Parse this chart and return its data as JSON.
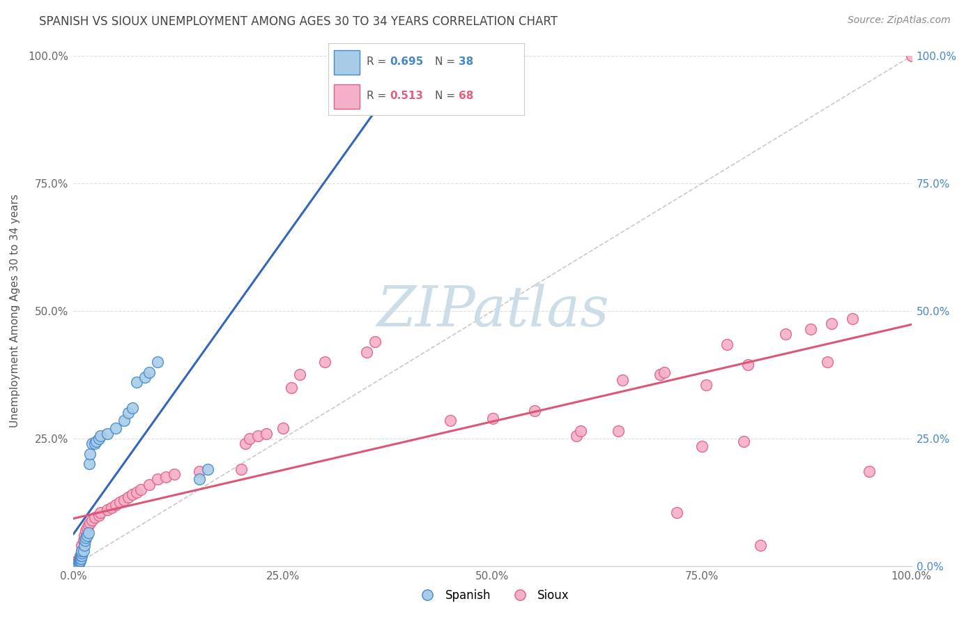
{
  "title": "SPANISH VS SIOUX UNEMPLOYMENT AMONG AGES 30 TO 34 YEARS CORRELATION CHART",
  "source": "Source: ZipAtlas.com",
  "ylabel": "Unemployment Among Ages 30 to 34 years",
  "xlim": [
    0,
    1.0
  ],
  "ylim": [
    0,
    1.0
  ],
  "xticks": [
    0.0,
    0.25,
    0.5,
    0.75,
    1.0
  ],
  "yticks": [
    0.0,
    0.25,
    0.5,
    0.75,
    1.0
  ],
  "xtick_labels": [
    "0.0%",
    "25.0%",
    "50.0%",
    "75.0%",
    "100.0%"
  ],
  "left_ytick_labels": [
    "",
    "25.0%",
    "50.0%",
    "75.0%",
    "100.0%"
  ],
  "right_ytick_labels": [
    "0.0%",
    "25.0%",
    "50.0%",
    "75.0%",
    "100.0%"
  ],
  "spanish_R": "0.695",
  "spanish_N": "38",
  "sioux_R": "0.513",
  "sioux_N": "68",
  "spanish_fill": "#a8cce8",
  "sioux_fill": "#f4b0c8",
  "spanish_edge": "#4488cc",
  "sioux_edge": "#e06080",
  "spanish_line": "#3366bb",
  "sioux_line": "#dd5577",
  "diagonal_color": "#bbbbbb",
  "bg_color": "#ffffff",
  "grid_color": "#dddddd",
  "title_color": "#444444",
  "source_color": "#888888",
  "watermark_color": "#ccdde8",
  "legend_border": "#cccccc",
  "spanish_x": [
    0.003,
    0.004,
    0.005,
    0.005,
    0.006,
    0.007,
    0.007,
    0.008,
    0.008,
    0.009,
    0.009,
    0.01,
    0.01,
    0.01,
    0.012,
    0.013,
    0.014,
    0.015,
    0.016,
    0.018,
    0.019,
    0.02,
    0.022,
    0.025,
    0.027,
    0.03,
    0.032,
    0.04,
    0.05,
    0.06,
    0.065,
    0.07,
    0.075,
    0.085,
    0.09,
    0.1,
    0.15,
    0.16
  ],
  "spanish_y": [
    0.0,
    0.0,
    0.0,
    0.005,
    0.005,
    0.008,
    0.01,
    0.01,
    0.015,
    0.015,
    0.02,
    0.02,
    0.025,
    0.03,
    0.03,
    0.04,
    0.05,
    0.055,
    0.06,
    0.065,
    0.2,
    0.22,
    0.24,
    0.24,
    0.245,
    0.25,
    0.255,
    0.26,
    0.27,
    0.285,
    0.3,
    0.31,
    0.36,
    0.37,
    0.38,
    0.4,
    0.17,
    0.19
  ],
  "sioux_x": [
    0.002,
    0.003,
    0.004,
    0.005,
    0.006,
    0.007,
    0.008,
    0.009,
    0.01,
    0.01,
    0.012,
    0.013,
    0.015,
    0.016,
    0.018,
    0.02,
    0.022,
    0.025,
    0.03,
    0.032,
    0.04,
    0.045,
    0.05,
    0.055,
    0.06,
    0.065,
    0.07,
    0.075,
    0.08,
    0.09,
    0.1,
    0.11,
    0.12,
    0.15,
    0.2,
    0.205,
    0.21,
    0.22,
    0.23,
    0.25,
    0.26,
    0.27,
    0.3,
    0.35,
    0.36,
    0.45,
    0.5,
    0.55,
    0.6,
    0.605,
    0.65,
    0.655,
    0.7,
    0.705,
    0.72,
    0.75,
    0.755,
    0.78,
    0.8,
    0.805,
    0.82,
    0.85,
    0.88,
    0.9,
    0.905,
    0.93,
    0.95,
    1.0
  ],
  "sioux_y": [
    0.0,
    0.0,
    0.005,
    0.01,
    0.01,
    0.015,
    0.02,
    0.02,
    0.03,
    0.04,
    0.05,
    0.06,
    0.07,
    0.075,
    0.08,
    0.085,
    0.09,
    0.095,
    0.1,
    0.105,
    0.11,
    0.115,
    0.12,
    0.125,
    0.13,
    0.135,
    0.14,
    0.145,
    0.15,
    0.16,
    0.17,
    0.175,
    0.18,
    0.185,
    0.19,
    0.24,
    0.25,
    0.255,
    0.26,
    0.27,
    0.35,
    0.375,
    0.4,
    0.42,
    0.44,
    0.285,
    0.29,
    0.305,
    0.255,
    0.265,
    0.265,
    0.365,
    0.375,
    0.38,
    0.105,
    0.235,
    0.355,
    0.435,
    0.245,
    0.395,
    0.04,
    0.455,
    0.465,
    0.4,
    0.475,
    0.485,
    0.185,
    1.0
  ],
  "marker_size": 130,
  "line_width": 2.2,
  "title_fontsize": 12,
  "axis_fontsize": 11,
  "source_fontsize": 10
}
